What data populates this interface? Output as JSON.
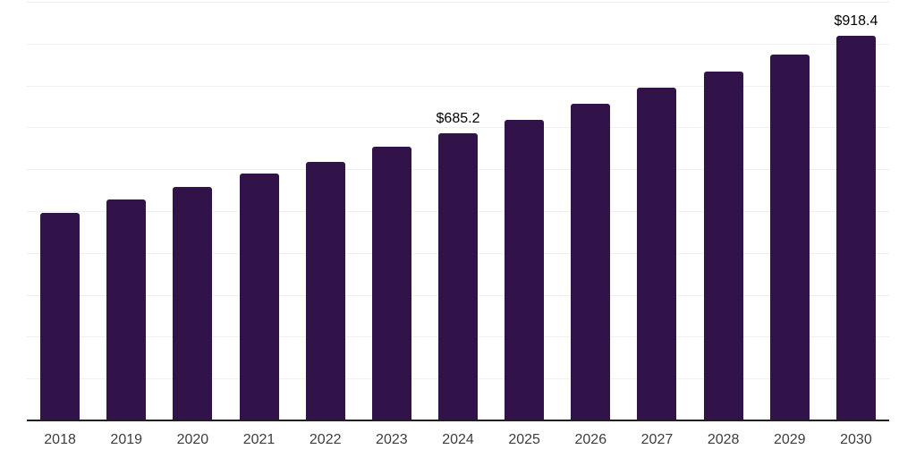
{
  "chart": {
    "background_color": "#ffffff",
    "bar_color": "#321349",
    "grid_color": "#f0f0f0",
    "axis_color": "#1f1f1f",
    "tick_label_color": "#3d3d3d",
    "value_label_color": "#000000"
  },
  "chart_data": {
    "type": "bar",
    "categories": [
      "2018",
      "2019",
      "2020",
      "2021",
      "2022",
      "2023",
      "2024",
      "2025",
      "2026",
      "2027",
      "2028",
      "2029",
      "2030"
    ],
    "values": [
      495,
      528,
      558,
      589,
      618,
      653,
      685.2,
      719,
      756,
      794,
      834,
      875,
      918.4
    ],
    "bar_labels": [
      "",
      "",
      "",
      "",
      "",
      "",
      "$685.2",
      "",
      "",
      "",
      "",
      "",
      "$918.4"
    ],
    "value_prefix": "$",
    "title": "",
    "xlabel": "",
    "ylabel": "",
    "ylim": [
      0,
      1000
    ],
    "grid_step": 100,
    "grid": true,
    "legend": false,
    "y_axis_labels_visible": false
  }
}
